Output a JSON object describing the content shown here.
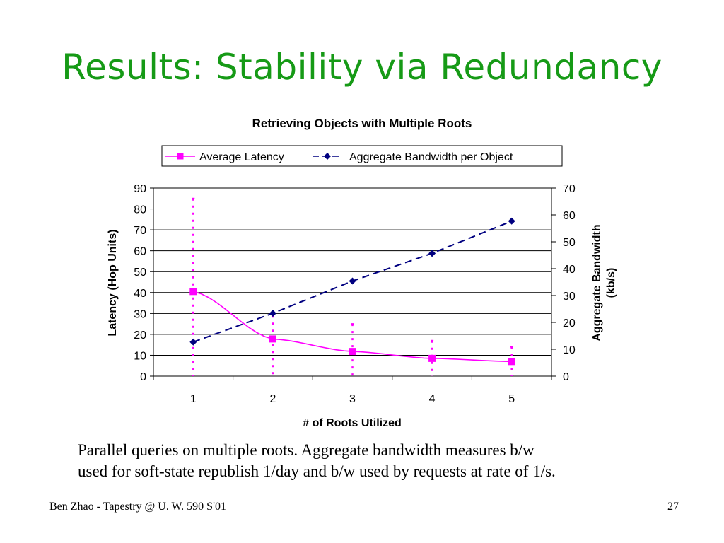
{
  "slide": {
    "title": "Results: Stability via Redundancy",
    "caption_line1": "Parallel queries on multiple roots. Aggregate bandwidth measures b/w",
    "caption_line2": "used for soft-state republish 1/day and b/w used by requests at rate of 1/s.",
    "footer_left": "Ben Zhao - Tapestry @ U. W. 590 S'01",
    "page_number": "27"
  },
  "chart_data": {
    "type": "line",
    "title": "Retrieving Objects with Multiple Roots",
    "xlabel": "# of Roots Utilized",
    "ylabel": "Latency (Hop Units)",
    "ylabel_right_line1": "Aggregate Bandwidth",
    "ylabel_right_line2": "(kb/s)",
    "categories": [
      "1",
      "2",
      "3",
      "4",
      "5"
    ],
    "ylim": [
      0,
      90
    ],
    "yticks": [
      "0",
      "10",
      "20",
      "30",
      "40",
      "50",
      "60",
      "70",
      "80",
      "90"
    ],
    "ylim_right": [
      0,
      70
    ],
    "yticks_right": [
      "0",
      "10",
      "20",
      "30",
      "40",
      "50",
      "60",
      "70"
    ],
    "grid": true,
    "legend_position": "top",
    "colors": {
      "latency": "#ff00ff",
      "bandwidth": "#000080",
      "grid": "#000000"
    },
    "series": [
      {
        "name": "Average Latency",
        "axis": "left",
        "values": [
          40.5,
          17.8,
          11.8,
          8.5,
          7
        ],
        "error_high": [
          85,
          29,
          25,
          17,
          14
        ],
        "error_low": [
          0,
          0,
          0,
          0,
          0
        ]
      },
      {
        "name": "Aggregate Bandwidth per Object",
        "axis": "right",
        "values": [
          12.7,
          23.4,
          35.4,
          45.7,
          57.7
        ]
      }
    ]
  }
}
